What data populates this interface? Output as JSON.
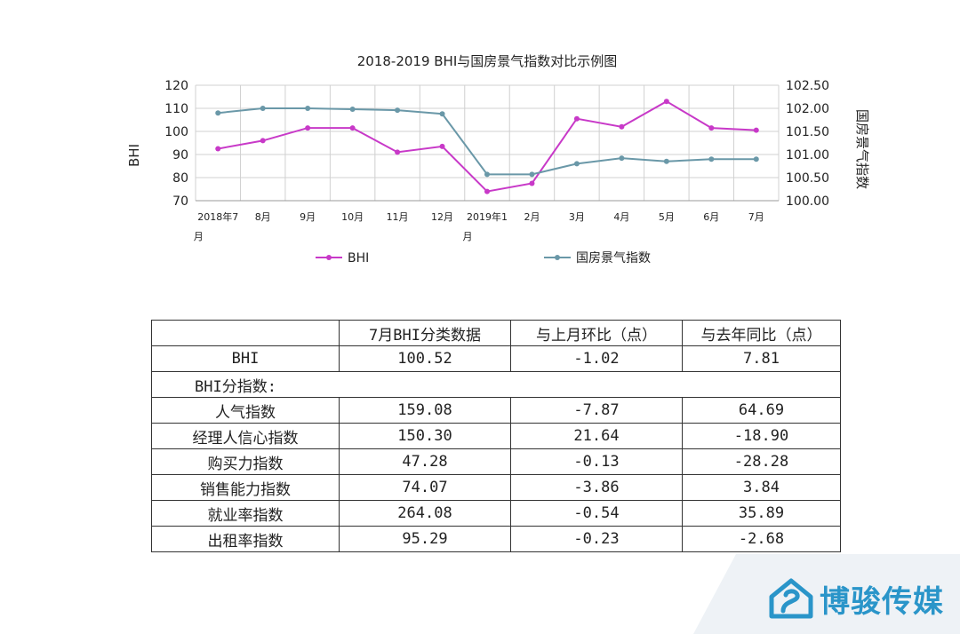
{
  "chart_data": {
    "type": "line",
    "title": "2018-2019 BHI与国房景气指数对比示例图",
    "categories": [
      "2018年7月",
      "8月",
      "9月",
      "10月",
      "11月",
      "12月",
      "2019年1月",
      "2月",
      "3月",
      "4月",
      "5月",
      "6月",
      "7月"
    ],
    "ylabel_left": "BHI",
    "ylabel_right": "国房景气指数",
    "ylim_left": [
      70,
      120
    ],
    "yticks_left": [
      "70",
      "80",
      "90",
      "100",
      "110",
      "120"
    ],
    "ylim_right": [
      100.0,
      102.5
    ],
    "yticks_right": [
      "100.00",
      "100.50",
      "101.00",
      "101.50",
      "102.00",
      "102.50"
    ],
    "legend_position": "bottom",
    "grid": true,
    "series": [
      {
        "name": "BHI",
        "axis": "left",
        "color": "#c839c8",
        "values": [
          92.5,
          96,
          101.5,
          101.5,
          91,
          93.5,
          74,
          77.5,
          105.5,
          102,
          113,
          101.5,
          100.52
        ]
      },
      {
        "name": "国房景气指数",
        "axis": "right",
        "color": "#6a98a8",
        "values": [
          101.9,
          102.0,
          102.0,
          101.98,
          101.96,
          101.88,
          100.57,
          100.57,
          100.8,
          100.92,
          100.85,
          100.9,
          100.9
        ]
      }
    ]
  },
  "table": {
    "headers": [
      "",
      "7月BHI分类数据",
      "与上月环比（点）",
      "与去年同比（点）"
    ],
    "rows": [
      {
        "name": "BHI",
        "values": [
          "100.52",
          "-1.02",
          "7.81"
        ]
      },
      {
        "name": "BHI分指数:",
        "values": []
      },
      {
        "name": "人气指数",
        "values": [
          "159.08",
          "-7.87",
          "64.69"
        ]
      },
      {
        "name": "经理人信心指数",
        "values": [
          "150.30",
          "21.64",
          "-18.90"
        ]
      },
      {
        "name": "购买力指数",
        "values": [
          "47.28",
          "-0.13",
          "-28.28"
        ]
      },
      {
        "name": "销售能力指数",
        "values": [
          "74.07",
          "-3.86",
          "3.84"
        ]
      },
      {
        "name": "就业率指数",
        "values": [
          "264.08",
          "-0.54",
          "35.89"
        ]
      },
      {
        "name": "出租率指数",
        "values": [
          "95.29",
          "-0.23",
          "-2.68"
        ]
      }
    ]
  },
  "watermark": {
    "text": "博骏传媒",
    "color": "#2a95c9"
  }
}
